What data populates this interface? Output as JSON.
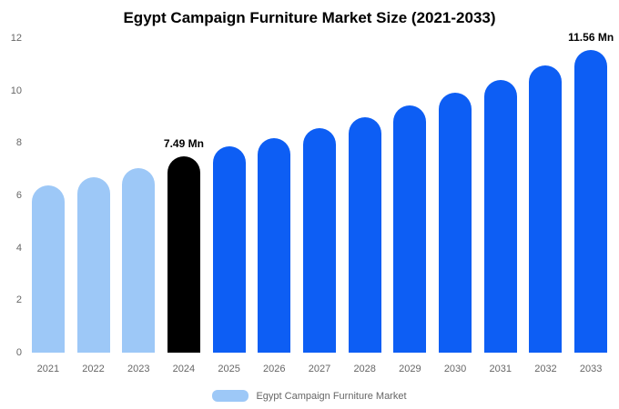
{
  "title": "Egypt Campaign Furniture Market Size (2021-2033)",
  "legend": {
    "label": "Egypt Campaign Furniture Market",
    "swatch_color": "#9dc8f7"
  },
  "colors": {
    "historical_bar": "#9dc8f7",
    "current_year_bar": "#000000",
    "forecast_bar": "#0d5ef4",
    "axis_text": "#666666",
    "annotation_text": "#000000",
    "background": "#ffffff"
  },
  "chart_data": {
    "type": "bar",
    "title": "Egypt Campaign Furniture Market Size (2021-2033)",
    "xlabel": "",
    "ylabel": "",
    "unit": "Mn",
    "categories": [
      "2021",
      "2022",
      "2023",
      "2024",
      "2025",
      "2026",
      "2027",
      "2028",
      "2029",
      "2030",
      "2031",
      "2032",
      "2033"
    ],
    "values": [
      6.38,
      6.7,
      7.04,
      7.49,
      7.86,
      8.19,
      8.57,
      9.0,
      9.45,
      9.93,
      10.42,
      10.96,
      11.56
    ],
    "bar_colors": [
      "#9dc8f7",
      "#9dc8f7",
      "#9dc8f7",
      "#000000",
      "#0d5ef4",
      "#0d5ef4",
      "#0d5ef4",
      "#0d5ef4",
      "#0d5ef4",
      "#0d5ef4",
      "#0d5ef4",
      "#0d5ef4",
      "#0d5ef4"
    ],
    "annotations": [
      {
        "category": "2024",
        "text": "7.49 Mn"
      },
      {
        "category": "2033",
        "text": "11.56 Mn"
      }
    ],
    "ylim": [
      0,
      12
    ],
    "yticks": [
      0,
      2,
      4,
      6,
      8,
      10,
      12
    ],
    "grid": false,
    "legend_position": "bottom",
    "legend_entries": [
      "Egypt Campaign Furniture Market"
    ]
  }
}
